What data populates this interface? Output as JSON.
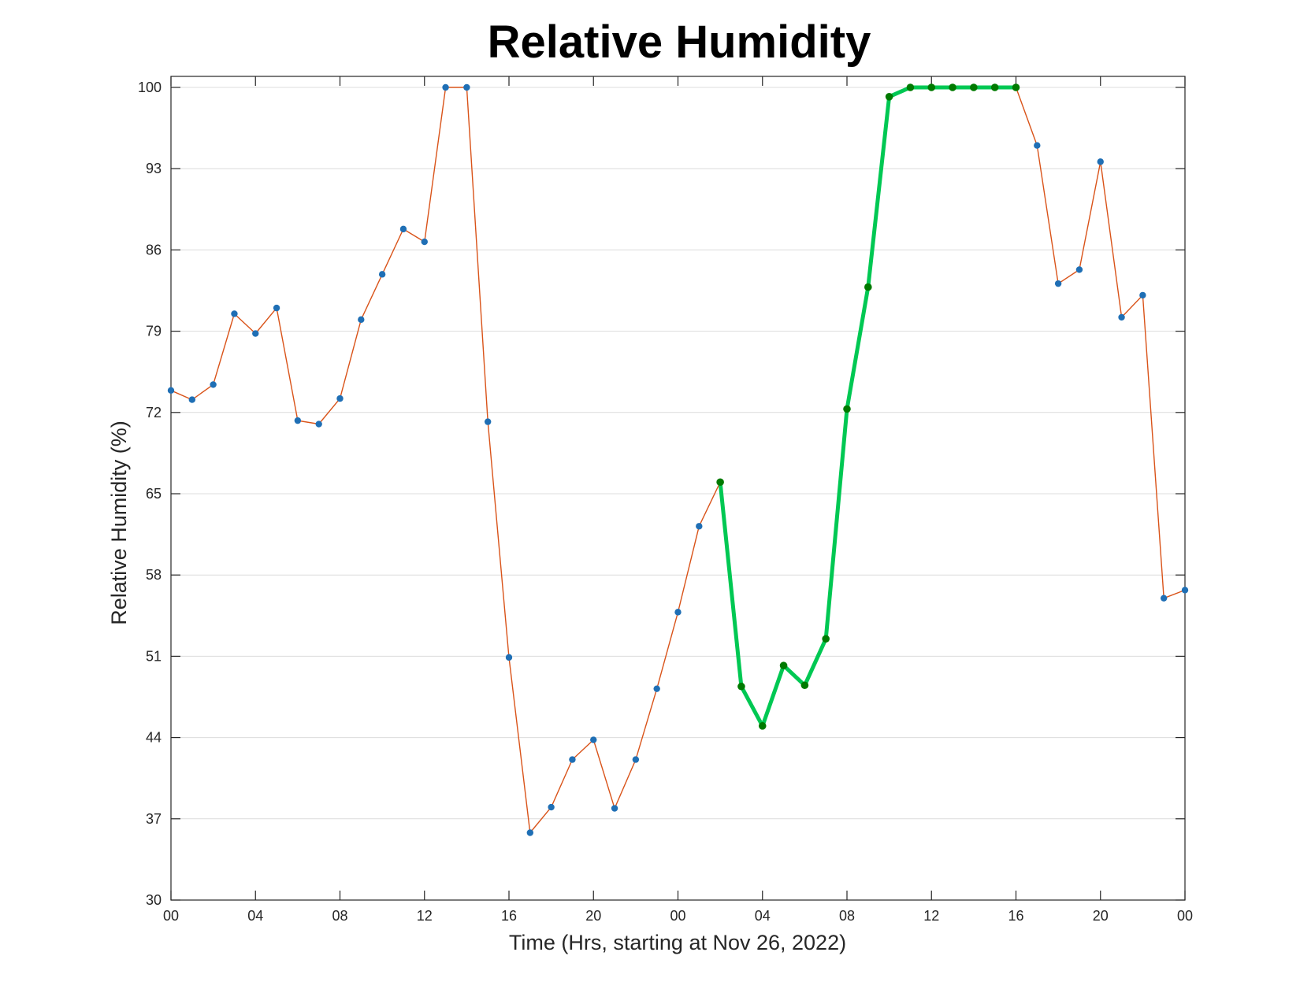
{
  "chart_data": {
    "type": "line",
    "title": "Relative Humidity",
    "xlabel": "Time (Hrs, starting at Nov 26, 2022)",
    "ylabel": "Relative Humidity (%)",
    "xlim": [
      0,
      48
    ],
    "ylim": [
      30,
      100
    ],
    "x_ticks": [
      0,
      4,
      8,
      12,
      16,
      20,
      24,
      28,
      32,
      36,
      40,
      44,
      48
    ],
    "x_tick_labels": [
      "00",
      "04",
      "08",
      "12",
      "16",
      "20",
      "00",
      "04",
      "08",
      "12",
      "16",
      "20",
      "00"
    ],
    "y_ticks": [
      30,
      37,
      44,
      51,
      58,
      65,
      72,
      79,
      86,
      93,
      100
    ],
    "y_tick_labels": [
      "30",
      "37",
      "44",
      "51",
      "58",
      "65",
      "72",
      "79",
      "86",
      "93",
      "100"
    ],
    "grid": "horizontal",
    "series": [
      {
        "color": "#d95319",
        "marker_color": "#1f6fb5",
        "x": [
          0,
          1,
          2,
          3,
          4,
          5,
          6,
          7,
          8,
          9,
          10,
          11,
          12,
          13,
          14,
          15,
          16,
          17,
          18,
          19,
          20,
          21,
          22,
          23,
          24,
          25,
          26,
          27,
          28,
          29,
          30,
          31,
          32,
          33,
          34,
          35,
          36,
          37,
          38,
          39,
          40,
          41,
          42,
          43,
          44,
          45,
          46,
          47,
          48
        ],
        "y": [
          73.9,
          73.1,
          74.4,
          80.5,
          78.8,
          81.0,
          71.3,
          71.0,
          73.2,
          80.0,
          83.9,
          87.8,
          86.7,
          100,
          100,
          71.2,
          50.9,
          35.8,
          38.0,
          42.1,
          43.8,
          37.9,
          42.1,
          48.2,
          54.8,
          62.2,
          66.0,
          48.4,
          45.0,
          50.2,
          48.5,
          52.5,
          72.3,
          82.8,
          99.2,
          100,
          100,
          100,
          100,
          100,
          100,
          95.0,
          83.1,
          84.3,
          93.6,
          80.2,
          82.1,
          56.0,
          56.7
        ]
      },
      {
        "color": "#00c853",
        "marker_color": "#007a00",
        "x": [
          26,
          27,
          28,
          29,
          30,
          31,
          32,
          33,
          34,
          35,
          36,
          37,
          38,
          39,
          40
        ],
        "y": [
          66.0,
          48.4,
          45.0,
          50.2,
          48.5,
          52.5,
          72.3,
          82.8,
          99.2,
          100,
          100,
          100,
          100,
          100,
          100
        ]
      }
    ]
  }
}
